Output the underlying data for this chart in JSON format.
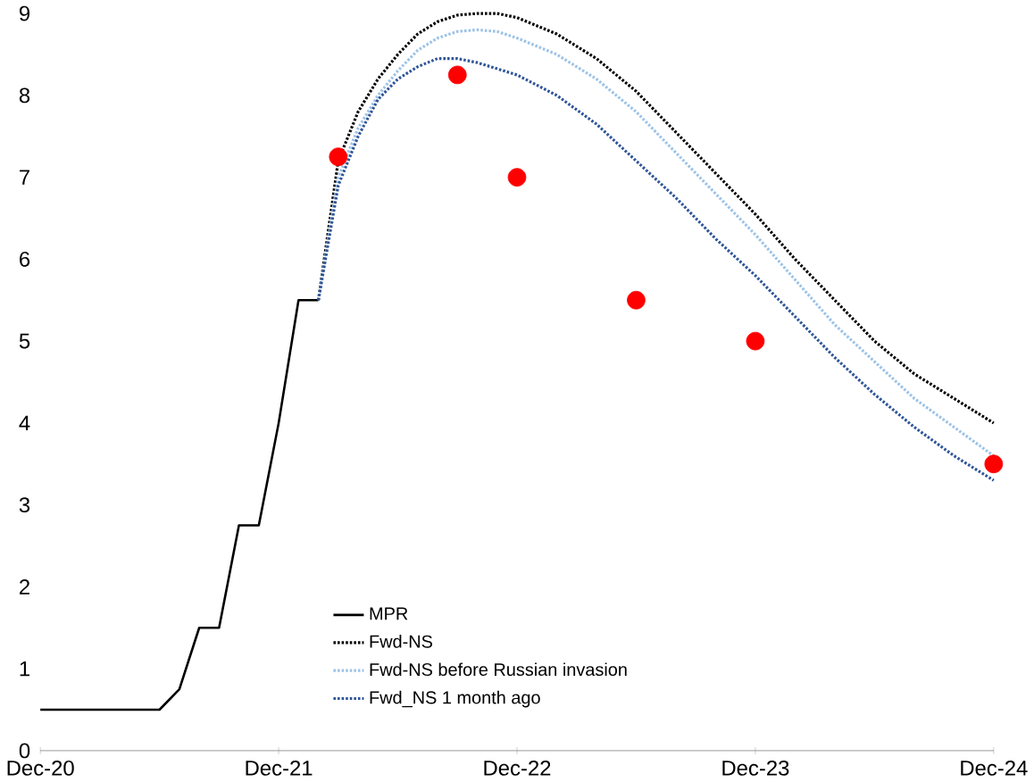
{
  "chart_data": {
    "type": "line",
    "xlim": [
      "2020-12",
      "2024-12"
    ],
    "ylim": [
      0,
      9
    ],
    "xticks": [
      {
        "value": "2020-12",
        "label": "Dec-20"
      },
      {
        "value": "2021-12",
        "label": "Dec-21"
      },
      {
        "value": "2022-12",
        "label": "Dec-22"
      },
      {
        "value": "2023-12",
        "label": "Dec-23"
      },
      {
        "value": "2024-12",
        "label": "Dec-24"
      }
    ],
    "yticks": [
      0,
      1,
      2,
      3,
      4,
      5,
      6,
      7,
      8,
      9
    ],
    "grid": false,
    "legend": "bottom left",
    "series": [
      {
        "name": "MPR",
        "type": "step",
        "color": "#000000",
        "line_style": "solid",
        "x": [
          "2020-12",
          "2021-01",
          "2021-02",
          "2021-03",
          "2021-04",
          "2021-05",
          "2021-06",
          "2021-07",
          "2021-08",
          "2021-09",
          "2021-10",
          "2021-11",
          "2021-12",
          "2022-01",
          "2022-02"
        ],
        "values": [
          0.5,
          0.5,
          0.5,
          0.5,
          0.5,
          0.5,
          0.5,
          0.75,
          1.5,
          1.5,
          2.75,
          2.75,
          4.0,
          5.5,
          5.5
        ]
      },
      {
        "name": "Fwd-NS",
        "color": "#000000",
        "line_style": "dotted",
        "x": [
          "2022-02",
          "2022-03",
          "2022-04",
          "2022-05",
          "2022-06",
          "2022-07",
          "2022-08",
          "2022-09",
          "2022-10",
          "2022-11",
          "2022-12",
          "2023-02",
          "2023-04",
          "2023-06",
          "2023-08",
          "2023-10",
          "2023-12",
          "2024-02",
          "2024-04",
          "2024-06",
          "2024-08",
          "2024-10",
          "2024-12"
        ],
        "values": [
          5.5,
          7.2,
          7.8,
          8.2,
          8.5,
          8.75,
          8.9,
          8.98,
          9.0,
          9.0,
          8.95,
          8.75,
          8.45,
          8.05,
          7.55,
          7.05,
          6.55,
          6.0,
          5.5,
          5.0,
          4.6,
          4.3,
          4.0
        ]
      },
      {
        "name": "Fwd-NS before Russian invasion",
        "color": "#9dc3e6",
        "line_style": "dotted",
        "x": [
          "2022-02",
          "2022-03",
          "2022-04",
          "2022-05",
          "2022-06",
          "2022-07",
          "2022-08",
          "2022-09",
          "2022-10",
          "2022-11",
          "2022-12",
          "2023-02",
          "2023-04",
          "2023-06",
          "2023-08",
          "2023-10",
          "2023-12",
          "2024-02",
          "2024-04",
          "2024-06",
          "2024-08",
          "2024-10",
          "2024-12"
        ],
        "values": [
          5.5,
          7.0,
          7.6,
          8.0,
          8.3,
          8.55,
          8.7,
          8.78,
          8.8,
          8.78,
          8.7,
          8.5,
          8.2,
          7.8,
          7.3,
          6.8,
          6.3,
          5.75,
          5.2,
          4.75,
          4.3,
          3.95,
          3.6
        ]
      },
      {
        "name": "Fwd_NS 1 month ago",
        "color": "#2f5597",
        "line_style": "dotted",
        "x": [
          "2022-02",
          "2022-03",
          "2022-04",
          "2022-05",
          "2022-06",
          "2022-07",
          "2022-08",
          "2022-09",
          "2022-10",
          "2022-12",
          "2023-02",
          "2023-04",
          "2023-06",
          "2023-08",
          "2023-10",
          "2023-12",
          "2024-02",
          "2024-04",
          "2024-06",
          "2024-08",
          "2024-10",
          "2024-12"
        ],
        "values": [
          5.5,
          6.9,
          7.5,
          7.95,
          8.2,
          8.35,
          8.45,
          8.45,
          8.4,
          8.25,
          8.0,
          7.65,
          7.2,
          6.75,
          6.25,
          5.8,
          5.3,
          4.8,
          4.35,
          3.95,
          3.6,
          3.3
        ]
      },
      {
        "type": "scatter",
        "color": "#ff0000",
        "x": [
          "2022-03",
          "2022-09",
          "2022-12",
          "2023-06",
          "2023-12",
          "2024-12"
        ],
        "values": [
          7.25,
          8.25,
          7.0,
          5.5,
          5.0,
          3.5
        ]
      }
    ]
  }
}
